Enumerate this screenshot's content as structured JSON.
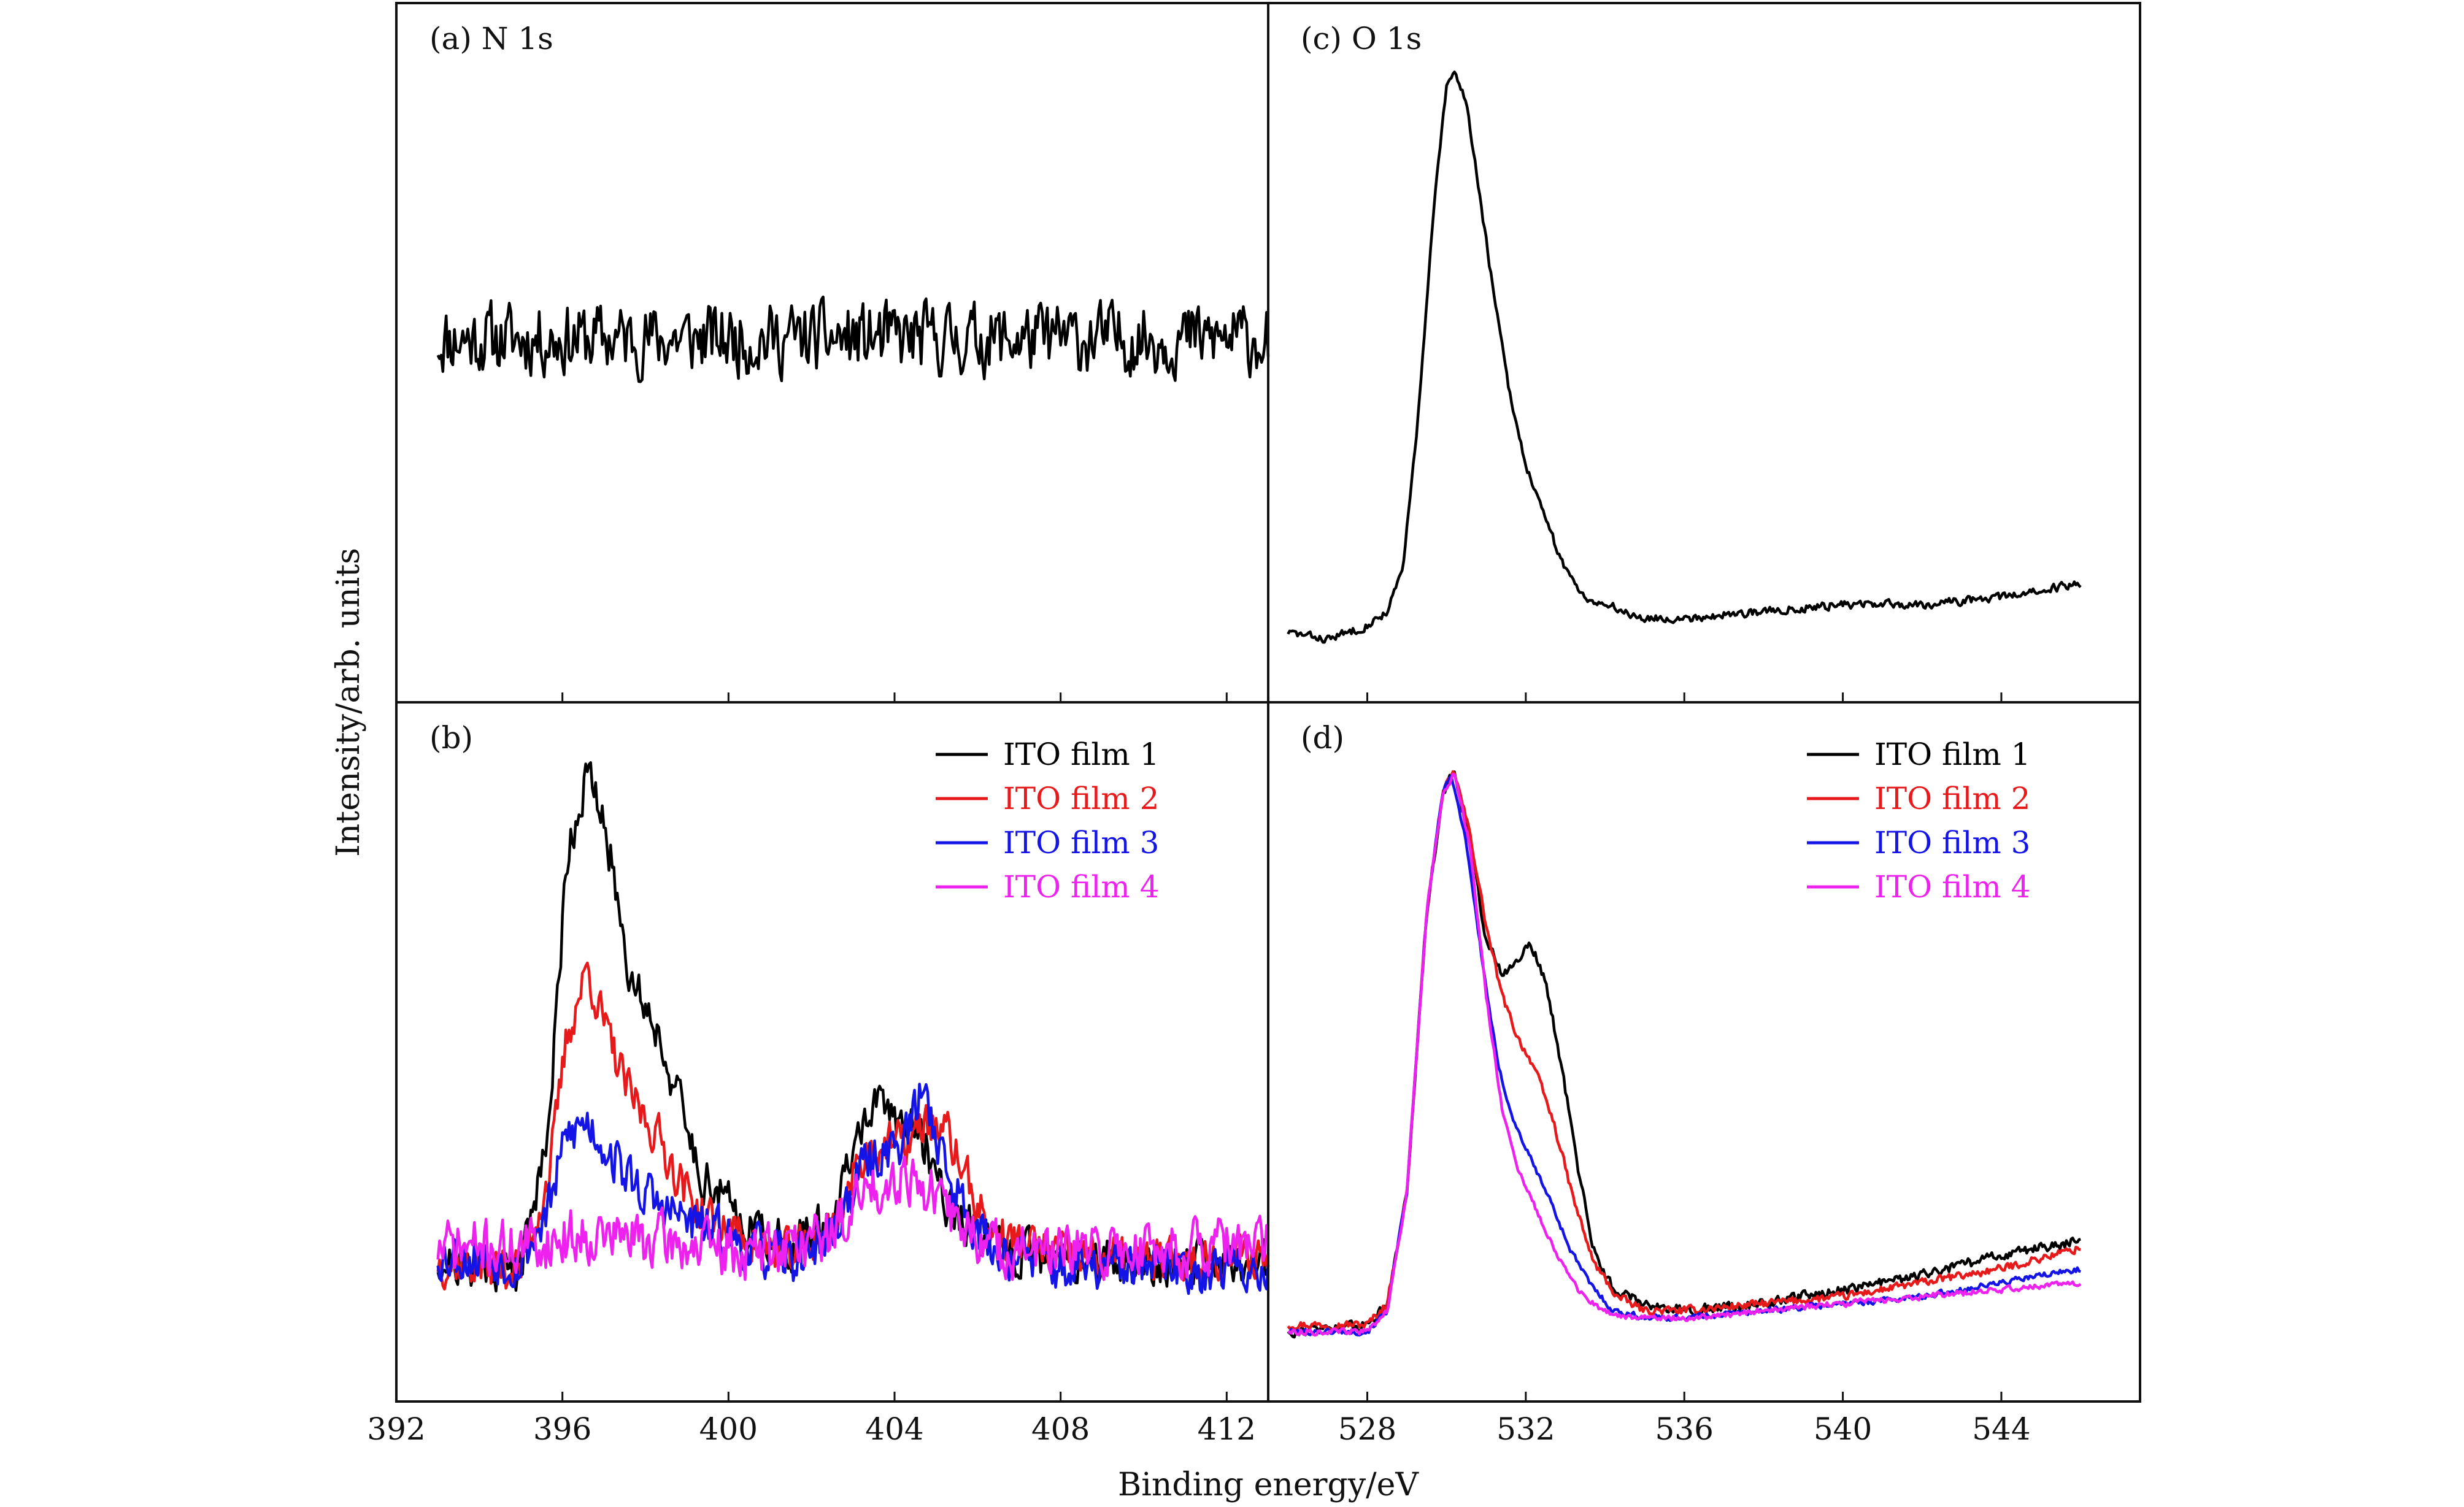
{
  "figure": {
    "ylabel": "Intensity/arb. units",
    "xlabel": "Binding energy/eV"
  },
  "chart_data": [
    {
      "panel": "a",
      "type": "line",
      "label": "(a) N 1s",
      "xlim": [
        392,
        413
      ],
      "ylim": [
        0,
        1
      ],
      "xticks": [
        392,
        396,
        400,
        404,
        408,
        412
      ],
      "series": [
        {
          "color": "#000000",
          "x": [
            393,
            413
          ],
          "y": [
            0.52,
            0.52
          ],
          "style": "noise",
          "noise_amp": 0.07,
          "seed": 11
        }
      ]
    },
    {
      "panel": "b",
      "type": "line",
      "label": "(b)",
      "xlim": [
        392,
        413
      ],
      "ylim": [
        0,
        1
      ],
      "xticks": [
        392,
        396,
        400,
        404,
        408,
        412
      ],
      "xtick_labels": [
        "392",
        "396",
        "400",
        "404",
        "408",
        "412"
      ],
      "legend": {
        "position": "top-right"
      },
      "series": [
        {
          "name": "ITO film 1",
          "color": "#000000",
          "x": [
            393,
            395,
            395.7,
            396.1,
            396.6,
            397.1,
            397.6,
            398.3,
            398.8,
            399.3,
            400.5,
            401.5,
            402.5,
            403.3,
            403.8,
            404.3,
            404.8,
            405.3,
            406.3,
            408,
            410,
            413
          ],
          "y": [
            0.2,
            0.19,
            0.41,
            0.78,
            0.9,
            0.8,
            0.62,
            0.53,
            0.43,
            0.33,
            0.25,
            0.22,
            0.26,
            0.41,
            0.42,
            0.4,
            0.36,
            0.28,
            0.22,
            0.2,
            0.2,
            0.2
          ],
          "noise_amp": 0.045,
          "seed": 21
        },
        {
          "name": "ITO film 2",
          "color": "#e8191a",
          "x": [
            393,
            395,
            395.7,
            396.1,
            396.6,
            397.1,
            397.6,
            398.3,
            398.8,
            399.3,
            400.5,
            401.5,
            402.5,
            403.3,
            404.3,
            404.8,
            405.3,
            406.3,
            408,
            410,
            413
          ],
          "y": [
            0.2,
            0.19,
            0.33,
            0.52,
            0.62,
            0.52,
            0.44,
            0.38,
            0.32,
            0.27,
            0.23,
            0.21,
            0.25,
            0.36,
            0.37,
            0.4,
            0.38,
            0.24,
            0.21,
            0.2,
            0.21
          ],
          "noise_amp": 0.045,
          "seed": 37
        },
        {
          "name": "ITO film 3",
          "color": "#1414e6",
          "x": [
            393,
            395,
            395.7,
            396.1,
            396.6,
            397.1,
            397.6,
            398.3,
            399.3,
            400.5,
            401.5,
            402.5,
            403.3,
            404.3,
            404.7,
            405.3,
            406.3,
            408,
            410,
            413
          ],
          "y": [
            0.21,
            0.2,
            0.28,
            0.38,
            0.4,
            0.36,
            0.32,
            0.28,
            0.25,
            0.22,
            0.2,
            0.24,
            0.34,
            0.38,
            0.45,
            0.32,
            0.22,
            0.19,
            0.19,
            0.19
          ],
          "noise_amp": 0.05,
          "seed": 53
        },
        {
          "name": "ITO film 4",
          "color": "#ee22ee",
          "x": [
            393,
            395,
            396.6,
            398.3,
            400.5,
            402.5,
            403.3,
            404.3,
            405.3,
            406.3,
            408,
            410,
            413
          ],
          "y": [
            0.22,
            0.22,
            0.24,
            0.23,
            0.21,
            0.24,
            0.3,
            0.33,
            0.27,
            0.22,
            0.21,
            0.22,
            0.22
          ],
          "noise_amp": 0.055,
          "seed": 71
        }
      ]
    },
    {
      "panel": "c",
      "type": "line",
      "label": "(c) O 1s",
      "xlim": [
        525.5,
        547.5
      ],
      "ylim": [
        0,
        1
      ],
      "xticks": [
        528,
        532,
        536,
        540,
        544
      ],
      "series": [
        {
          "color": "#000000",
          "x": [
            526,
            527,
            528,
            528.5,
            528.9,
            529.3,
            529.7,
            530.0,
            530.2,
            530.5,
            530.8,
            531.2,
            531.6,
            532.0,
            532.5,
            533.0,
            533.5,
            534,
            535,
            536,
            538,
            540,
            542,
            544,
            546
          ],
          "y": [
            0.1,
            0.09,
            0.11,
            0.13,
            0.19,
            0.42,
            0.72,
            0.88,
            0.9,
            0.86,
            0.74,
            0.58,
            0.44,
            0.34,
            0.26,
            0.19,
            0.15,
            0.14,
            0.12,
            0.12,
            0.13,
            0.14,
            0.14,
            0.15,
            0.17
          ],
          "noise_amp": 0.008,
          "seed": 83
        }
      ]
    },
    {
      "panel": "d",
      "type": "line",
      "label": "(d)",
      "xlim": [
        525.5,
        547.5
      ],
      "ylim": [
        0,
        1
      ],
      "xticks": [
        528,
        532,
        536,
        540,
        544
      ],
      "xtick_labels": [
        "528",
        "532",
        "536",
        "540",
        "544"
      ],
      "legend": {
        "position": "top-right"
      },
      "series": [
        {
          "name": "ITO film 1",
          "color": "#000000",
          "x": [
            526,
            528,
            528.5,
            529.0,
            529.5,
            529.9,
            530.2,
            530.6,
            531.0,
            531.4,
            531.8,
            532.1,
            532.5,
            532.9,
            533.3,
            533.7,
            534.2,
            535,
            536,
            538,
            540,
            542,
            544,
            546
          ],
          "y": [
            0.1,
            0.11,
            0.14,
            0.3,
            0.7,
            0.87,
            0.9,
            0.8,
            0.66,
            0.61,
            0.63,
            0.66,
            0.6,
            0.48,
            0.34,
            0.22,
            0.16,
            0.14,
            0.13,
            0.14,
            0.16,
            0.18,
            0.21,
            0.23
          ],
          "noise_amp": 0.01,
          "seed": 91
        },
        {
          "name": "ITO film 2",
          "color": "#e8191a",
          "x": [
            526,
            528,
            528.5,
            529.0,
            529.5,
            529.9,
            530.2,
            530.6,
            531.0,
            531.4,
            531.8,
            532.2,
            532.7,
            533.2,
            533.7,
            534.3,
            535,
            536,
            538,
            540,
            542,
            544,
            546
          ],
          "y": [
            0.11,
            0.11,
            0.14,
            0.3,
            0.7,
            0.87,
            0.9,
            0.81,
            0.68,
            0.58,
            0.52,
            0.48,
            0.4,
            0.29,
            0.2,
            0.15,
            0.13,
            0.13,
            0.14,
            0.15,
            0.17,
            0.19,
            0.22
          ],
          "noise_amp": 0.008,
          "seed": 97
        },
        {
          "name": "ITO film 3",
          "color": "#1414e6",
          "x": [
            526,
            528,
            528.5,
            529.0,
            529.5,
            529.9,
            530.1,
            530.5,
            530.9,
            531.3,
            531.7,
            532.1,
            532.6,
            533.1,
            533.6,
            534.2,
            535,
            536,
            538,
            540,
            542,
            544,
            546
          ],
          "y": [
            0.1,
            0.1,
            0.13,
            0.3,
            0.7,
            0.87,
            0.9,
            0.8,
            0.63,
            0.48,
            0.4,
            0.35,
            0.29,
            0.22,
            0.17,
            0.13,
            0.12,
            0.12,
            0.13,
            0.14,
            0.15,
            0.17,
            0.19
          ],
          "noise_amp": 0.006,
          "seed": 101
        },
        {
          "name": "ITO film 4",
          "color": "#ee22ee",
          "x": [
            526,
            528,
            528.5,
            529.0,
            529.5,
            529.9,
            530.2,
            530.6,
            531.0,
            531.4,
            531.8,
            532.3,
            532.8,
            533.3,
            533.9,
            534.5,
            535.5,
            536.5,
            538,
            540,
            542,
            544,
            546
          ],
          "y": [
            0.1,
            0.1,
            0.13,
            0.3,
            0.7,
            0.87,
            0.9,
            0.79,
            0.58,
            0.42,
            0.33,
            0.27,
            0.21,
            0.16,
            0.13,
            0.12,
            0.12,
            0.12,
            0.13,
            0.14,
            0.15,
            0.16,
            0.17
          ],
          "noise_amp": 0.006,
          "seed": 113
        }
      ]
    }
  ]
}
